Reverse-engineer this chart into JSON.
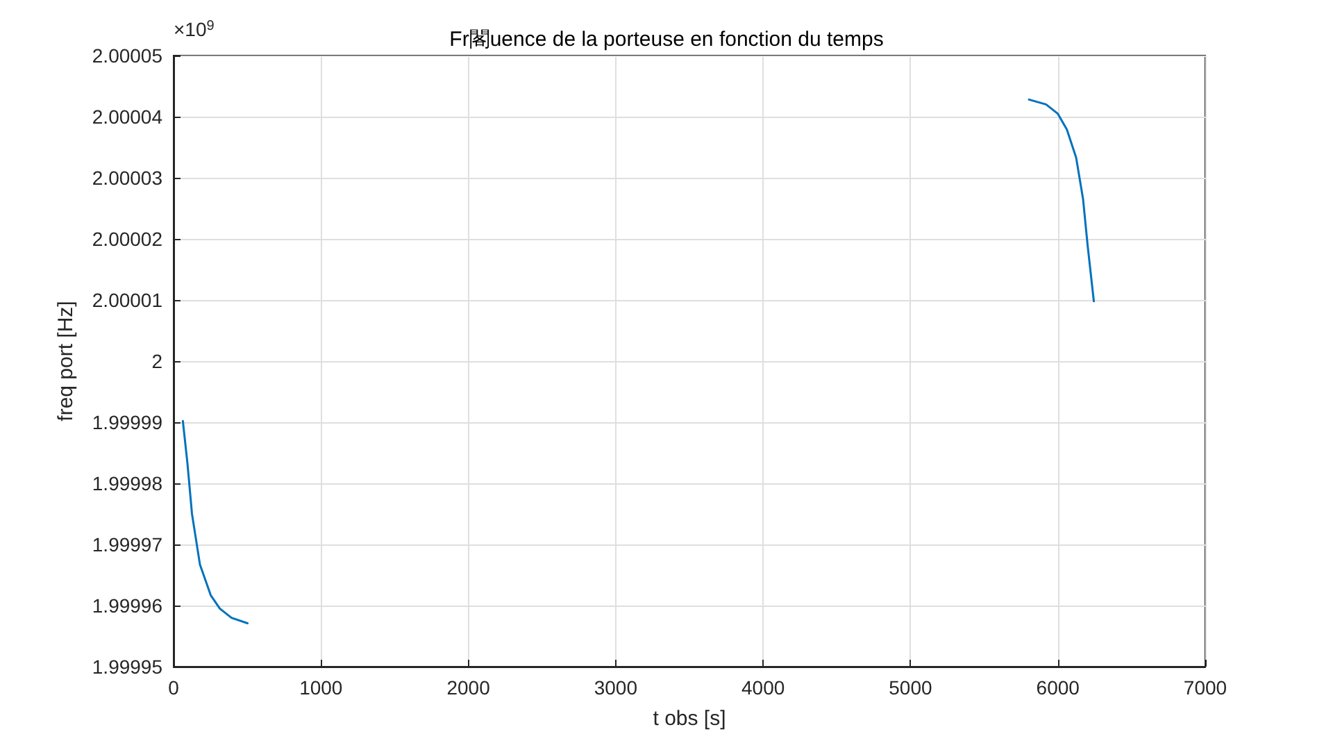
{
  "chart_data": {
    "type": "line",
    "title": "Fr閣uence de la porteuse en fonction du temps",
    "xlabel": "t obs [s]",
    "ylabel": "freq port [Hz]",
    "annotations": [
      "×10$^{9}$"
    ],
    "series": [
      {
        "color": "#0072bd",
        "x": [
          63,
          94,
          125,
          179,
          252,
          314,
          393,
          502
        ],
        "values": [
          1.9999902,
          1.9999833,
          1.999975,
          1.9999667,
          1.9999617,
          1.9999595,
          1.999958,
          1.9999571
        ]
      },
      {
        "color": "#0072bd",
        "x": [
          5804,
          5920,
          5999,
          6061,
          6124,
          6171,
          6202,
          6244
        ],
        "values": [
          2.0000428,
          2.000042,
          2.0000405,
          2.0000379,
          2.0000333,
          2.0000265,
          2.0000189,
          2.0000098
        ]
      }
    ],
    "xlim": [
      0,
      7000
    ],
    "xticks": [
      0,
      1000,
      2000,
      3000,
      4000,
      5000,
      6000,
      7000
    ],
    "ylim": [
      1.99995,
      2.00005
    ],
    "yticks": [
      1.99995,
      1.99996,
      1.99997,
      1.99998,
      1.99999,
      2,
      2.00001,
      2.00002,
      2.00003,
      2.00004,
      2.00005
    ],
    "grid": true,
    "marker": "none",
    "line_style": "solid"
  }
}
